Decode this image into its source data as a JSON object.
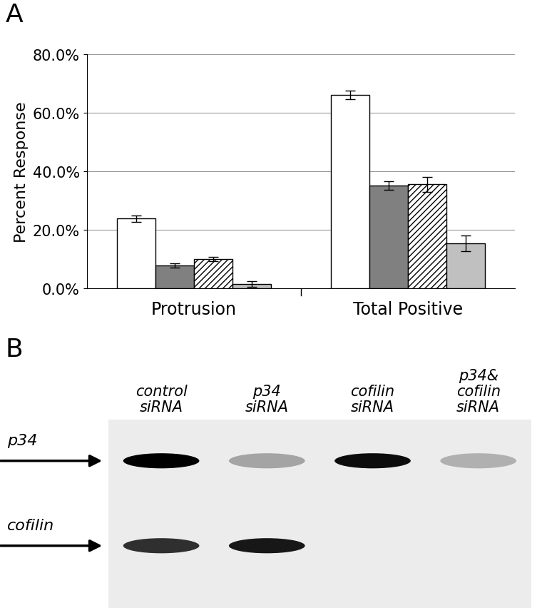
{
  "panel_labels": [
    "A",
    "B"
  ],
  "chart_data": {
    "type": "bar",
    "y_label": "Percent Response",
    "categories": [
      "Protrusion",
      "Total Positive"
    ],
    "series": [
      {
        "color": "#ffffff",
        "values": [
          23.8,
          66.0
        ],
        "errors": [
          1.0,
          1.5
        ]
      },
      {
        "color": "#808080",
        "values": [
          7.8,
          35.2
        ],
        "errors": [
          0.8,
          1.5
        ]
      },
      {
        "color": "#ffffff",
        "values": [
          10.0,
          35.5
        ],
        "errors": [
          0.7,
          2.5
        ]
      },
      {
        "color": "#c0c0c0",
        "values": [
          1.5,
          15.3
        ],
        "errors": [
          0.9,
          2.7
        ]
      }
    ],
    "ylim": [
      0,
      80
    ],
    "yticks": [
      {
        "value": 0,
        "label": "0.0%"
      },
      {
        "value": 20,
        "label": "20.0%"
      },
      {
        "value": 40,
        "label": "40.0%"
      },
      {
        "value": 60,
        "label": "60.0%"
      },
      {
        "value": 80,
        "label": "80.0%"
      }
    ],
    "grid": true
  },
  "blot": {
    "lanes": [
      "control\nsiRNA",
      "p34\nsiRNA",
      "cofilin\nsiRNA",
      "p34&\ncofilin\nsiRNA"
    ],
    "rows": [
      {
        "label": "p34",
        "intensity": [
          1.0,
          0.3,
          0.95,
          0.25
        ]
      },
      {
        "label": "cofilin",
        "intensity": [
          0.8,
          0.9,
          0.0,
          0.0
        ]
      }
    ]
  }
}
